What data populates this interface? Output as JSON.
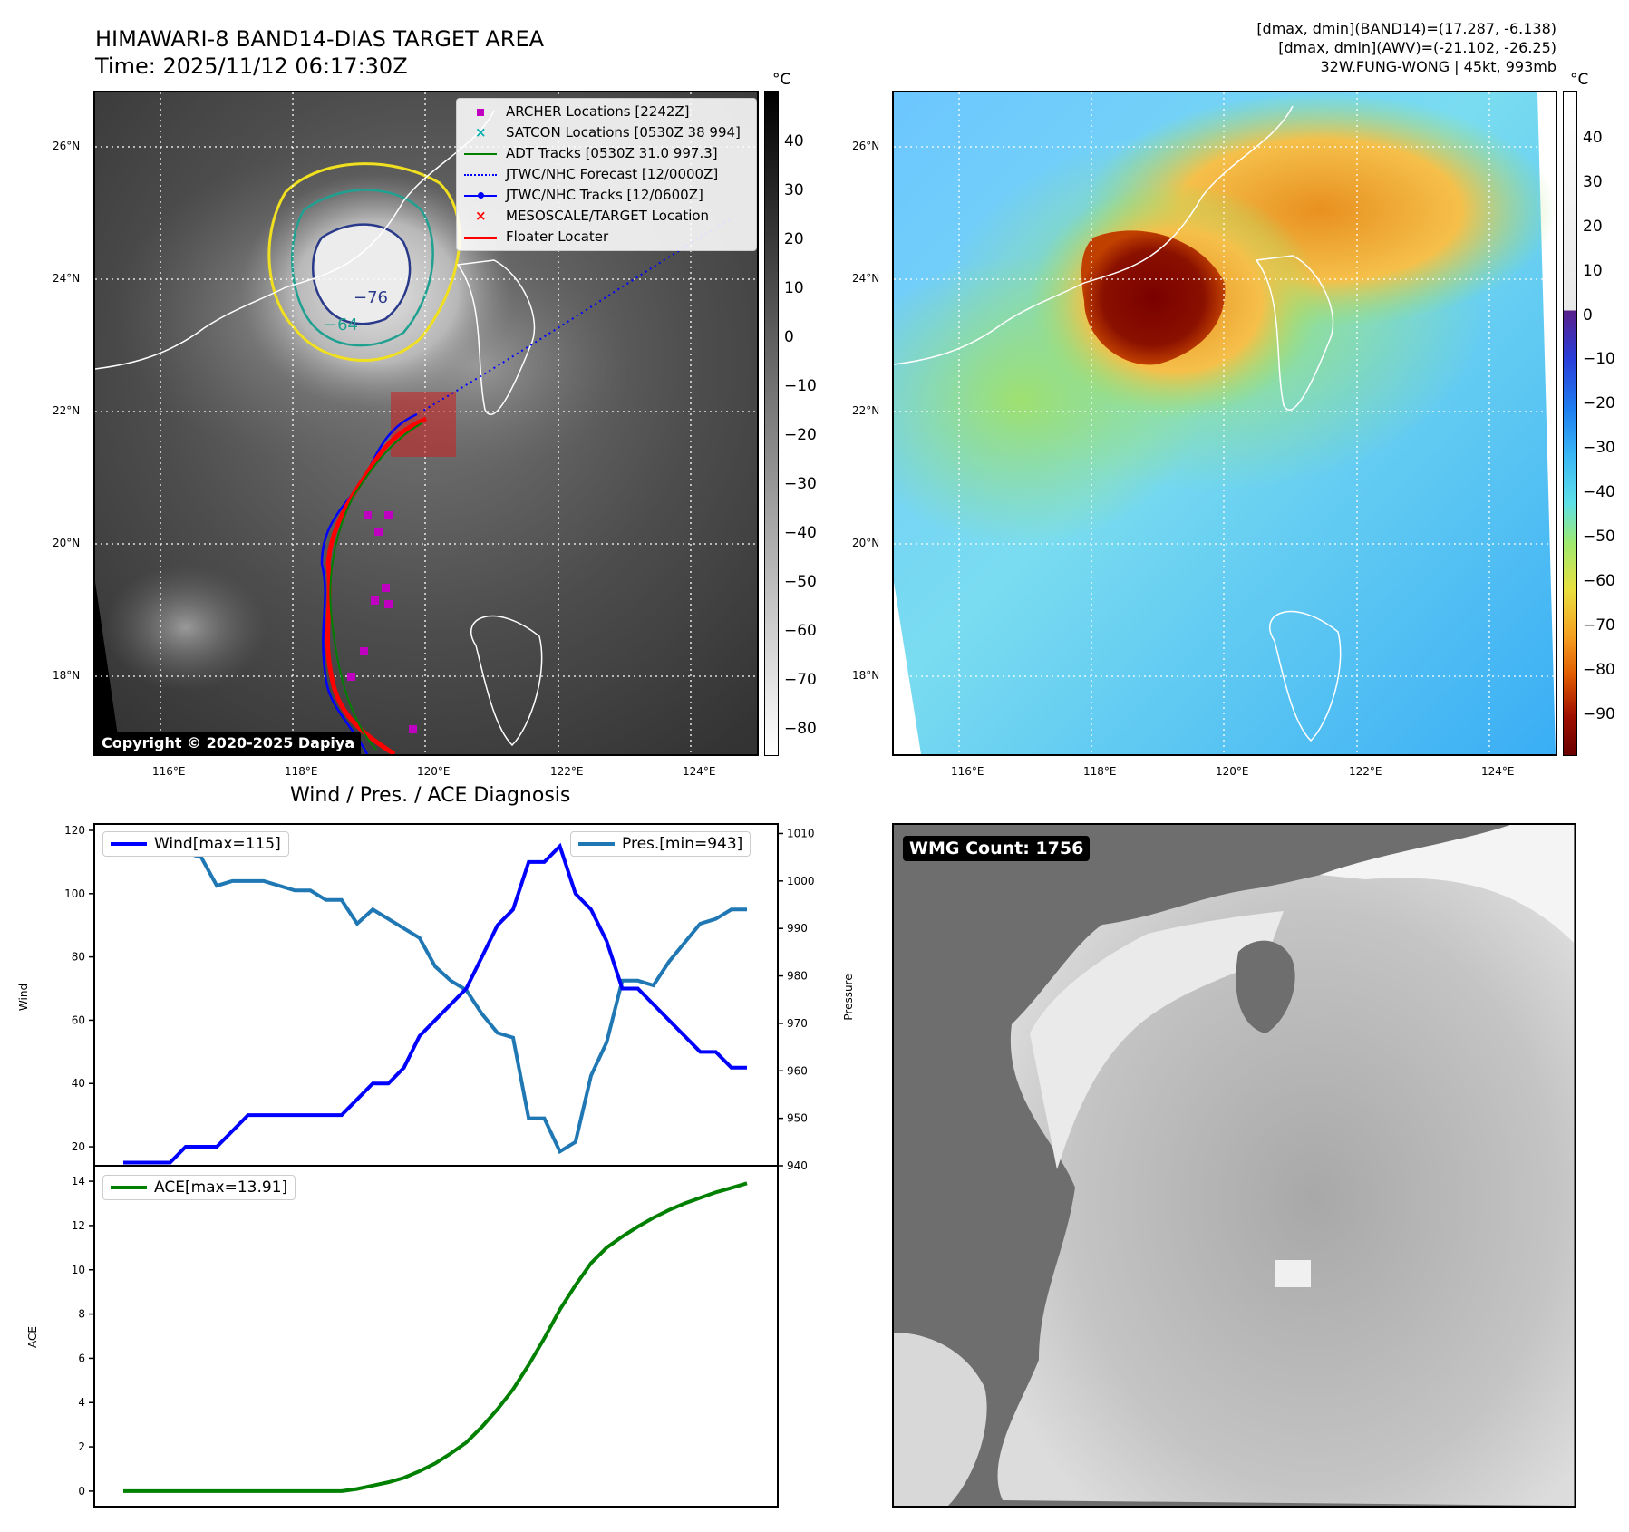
{
  "header": {
    "title_line1": "HIMAWARI-8 BAND14-DIAS TARGET AREA",
    "title_line2": "Time: 2025/11/12 06:17:30Z",
    "stat_line1": "[dmax, dmin](BAND14)=(17.287, -6.138)",
    "stat_line2": "[dmax, dmin](AWV)=(-21.102, -26.25)",
    "stat_line3": "32W.FUNG-WONG | 45kt, 993mb"
  },
  "map_axes": {
    "lon_labels": [
      "116°E",
      "118°E",
      "120°E",
      "122°E",
      "124°E"
    ],
    "lat_labels": [
      "26°N",
      "24°N",
      "22°N",
      "20°N",
      "18°N"
    ]
  },
  "ir_panel": {
    "colorbar_unit": "°C",
    "colorbar_ticks": [
      "40",
      "30",
      "20",
      "10",
      "0",
      "−10",
      "−20",
      "−30",
      "−40",
      "−50",
      "−60",
      "−70",
      "−80"
    ],
    "copyright": "Copyright © 2020-2025 Dapiya",
    "contour_label_1": "−76",
    "contour_label_2": "−64",
    "legend": [
      {
        "label": "ARCHER Locations [2242Z]",
        "color": "#c000c0",
        "marker": "square"
      },
      {
        "label": "SATCON Locations [0530Z 38 994]",
        "color": "#00b0b0",
        "marker": "x"
      },
      {
        "label": "ADT Tracks [0530Z 31.0 997.3]",
        "color": "#008000",
        "marker": "line"
      },
      {
        "label": "JTWC/NHC Forecast [12/0000Z]",
        "color": "#0000ff",
        "marker": "dotted"
      },
      {
        "label": "JTWC/NHC Tracks [12/0600Z]",
        "color": "#0000ff",
        "marker": "dotline"
      },
      {
        "label": "MESOSCALE/TARGET Location",
        "color": "#ff0000",
        "marker": "x"
      },
      {
        "label": "Floater Locater",
        "color": "#ff0000",
        "marker": "line"
      }
    ]
  },
  "awv_panel": {
    "colorbar_unit": "°C",
    "colorbar_ticks": [
      "40",
      "30",
      "20",
      "10",
      "0",
      "−10",
      "−20",
      "−30",
      "−40",
      "−50",
      "−60",
      "−70",
      "−80",
      "−90"
    ]
  },
  "wmg_panel": {
    "badge": "WMG Count: 1756"
  },
  "chart_data": [
    {
      "type": "line",
      "title": "Wind / Pres. / ACE Diagnosis",
      "ylabel": "Wind",
      "y2label": "Pressure",
      "ylim": [
        14,
        122
      ],
      "y2lim": [
        940,
        1012
      ],
      "yticks": [
        "120",
        "100",
        "80",
        "60",
        "40",
        "20"
      ],
      "y2ticks": [
        "1010",
        "1000",
        "990",
        "980",
        "970",
        "960",
        "950",
        "940"
      ],
      "series": [
        {
          "name": "Wind[max=115]",
          "color": "#0000ff",
          "axis": "left",
          "values": [
            15,
            15,
            15,
            15,
            20,
            20,
            20,
            25,
            30,
            30,
            30,
            30,
            30,
            30,
            30,
            35,
            40,
            40,
            45,
            55,
            60,
            65,
            70,
            80,
            90,
            95,
            110,
            110,
            115,
            100,
            95,
            85,
            70,
            70,
            65,
            60,
            55,
            50,
            50,
            45,
            45
          ]
        },
        {
          "name": "Pres.[min=943]",
          "color": "#1f77b4",
          "axis": "right",
          "values": [
            1010,
            1007,
            1007,
            1007,
            1006,
            1005,
            999,
            1000,
            1000,
            1000,
            999,
            998,
            998,
            996,
            996,
            991,
            994,
            992,
            990,
            988,
            982,
            979,
            977,
            972,
            968,
            967,
            950,
            950,
            943,
            945,
            959,
            966,
            979,
            979,
            978,
            983,
            987,
            991,
            992,
            994,
            994
          ]
        }
      ]
    },
    {
      "type": "line",
      "ylabel": "ACE",
      "ylim": [
        -0.7,
        14.7
      ],
      "yticks": [
        "14",
        "12",
        "10",
        "8",
        "6",
        "4",
        "2",
        "0"
      ],
      "series": [
        {
          "name": "ACE[max=13.91]",
          "color": "#008000",
          "values": [
            0,
            0,
            0,
            0,
            0,
            0,
            0,
            0,
            0,
            0,
            0,
            0,
            0,
            0,
            0,
            0.1,
            0.25,
            0.4,
            0.6,
            0.9,
            1.25,
            1.7,
            2.2,
            2.9,
            3.7,
            4.6,
            5.7,
            6.9,
            8.2,
            9.3,
            10.3,
            11.0,
            11.5,
            11.95,
            12.35,
            12.7,
            13.0,
            13.25,
            13.5,
            13.7,
            13.91
          ]
        }
      ]
    }
  ]
}
